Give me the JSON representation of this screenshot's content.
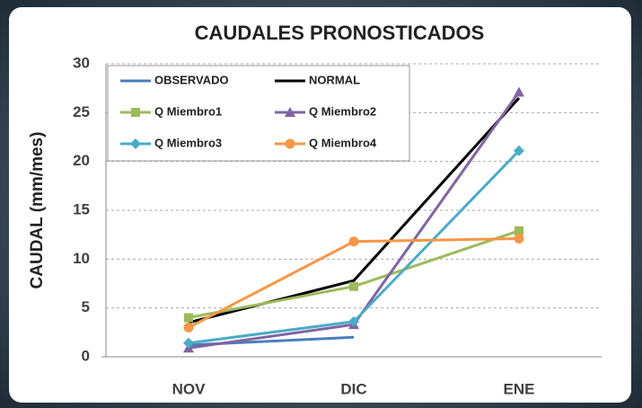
{
  "chart_data": {
    "type": "line",
    "title": "CAUDALES PRONOSTICADOS",
    "y_label": "CAUDAL (mm/mes)",
    "categories": [
      "NOV",
      "DIC",
      "ENE"
    ],
    "series": [
      {
        "name": "OBSERVADO",
        "color": "#4a7ebb",
        "marker": "none",
        "values": [
          1.2,
          2.0,
          null
        ]
      },
      {
        "name": "NORMAL",
        "color": "#000000",
        "marker": "none",
        "values": [
          3.5,
          7.8,
          26.5
        ]
      },
      {
        "name": "Q Miembro1",
        "color": "#9bbb59",
        "marker": "square",
        "values": [
          4.0,
          7.2,
          12.9
        ]
      },
      {
        "name": "Q Miembro2",
        "color": "#8064a2",
        "marker": "triangle",
        "values": [
          0.9,
          3.3,
          27.1
        ]
      },
      {
        "name": "Q Miembro3",
        "color": "#4bacc6",
        "marker": "diamond",
        "values": [
          1.4,
          3.6,
          21.1
        ]
      },
      {
        "name": "Q Miembro4",
        "color": "#f79646",
        "marker": "circle",
        "values": [
          3.0,
          11.8,
          12.1
        ]
      }
    ],
    "ylim": [
      0,
      30
    ],
    "yticks": [
      0,
      5,
      10,
      15,
      20,
      25,
      30
    ],
    "grid": true,
    "legend": "upper left"
  }
}
